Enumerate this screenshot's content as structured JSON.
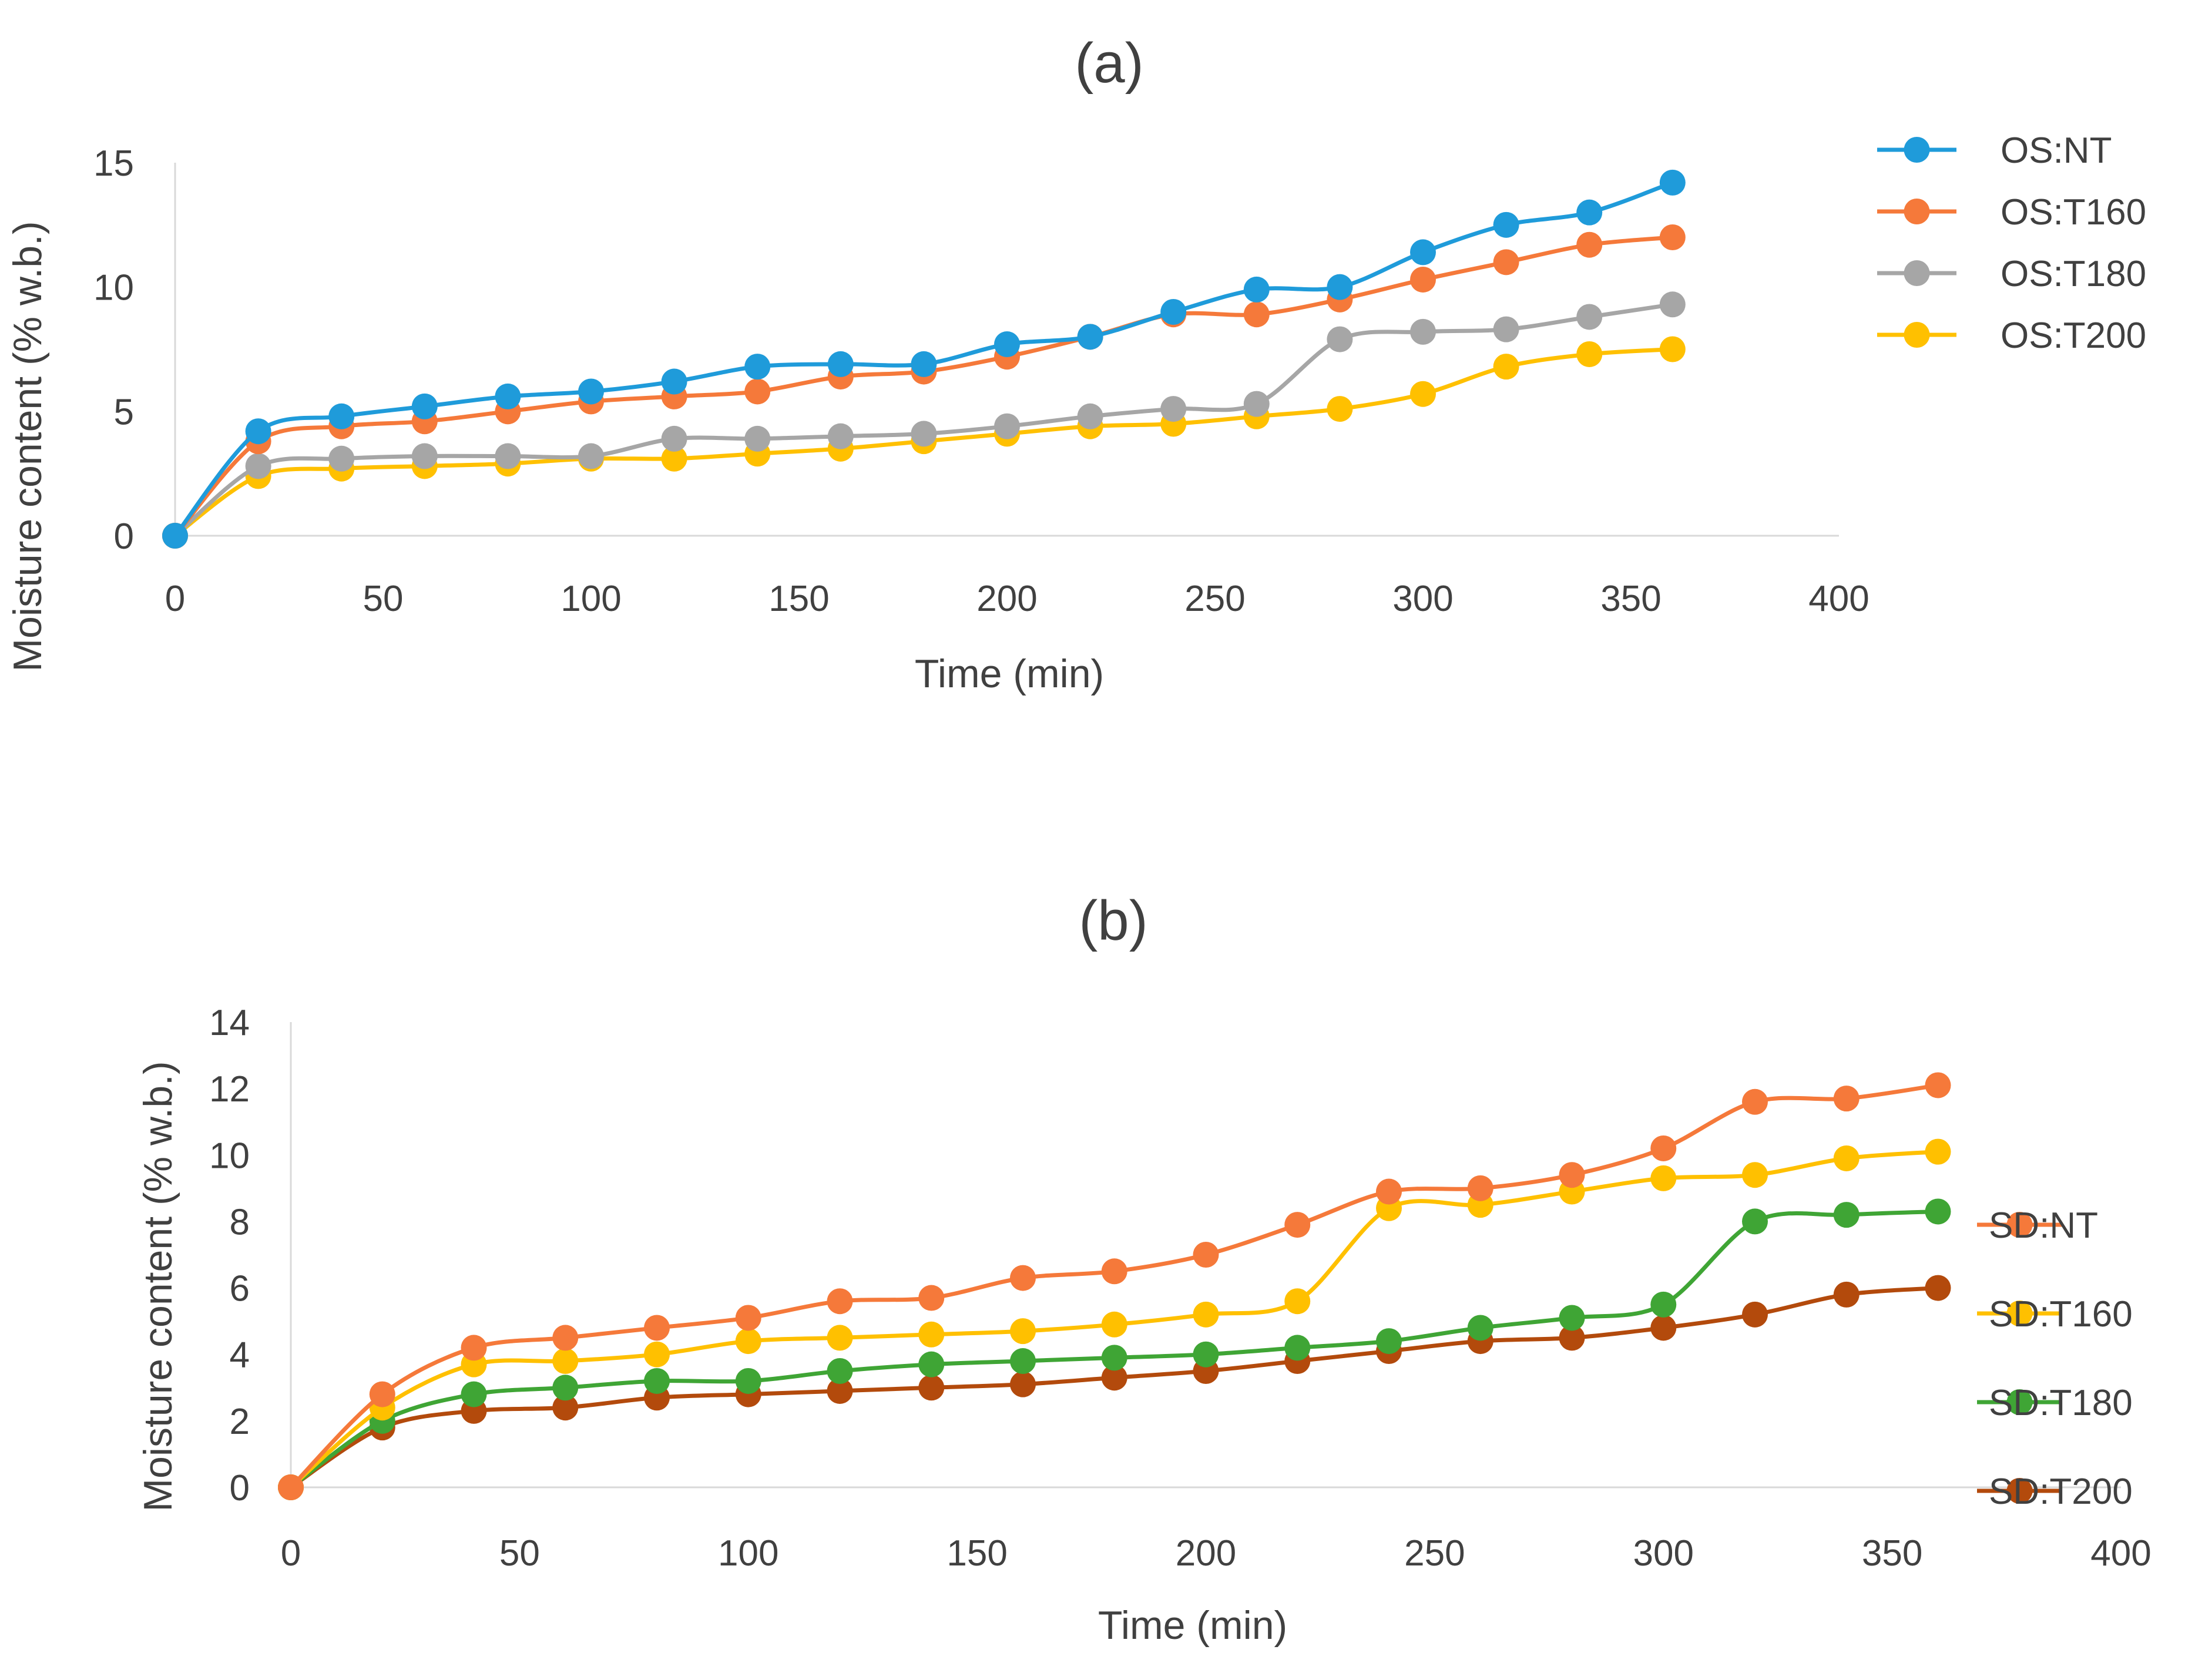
{
  "chart_data": [
    {
      "type": "line",
      "title": "(a)",
      "xlabel": "Time (min)",
      "ylabel": "Moisture content (% w.b.)",
      "xlim": [
        0,
        400
      ],
      "ylim": [
        0,
        15
      ],
      "xticks": [
        0,
        50,
        100,
        150,
        200,
        250,
        300,
        350,
        400
      ],
      "yticks": [
        0,
        5,
        10,
        15
      ],
      "grid": false,
      "legend_position": "right",
      "x": [
        0,
        20,
        40,
        60,
        80,
        100,
        120,
        140,
        160,
        180,
        200,
        220,
        240,
        260,
        280,
        300,
        320,
        340,
        360
      ],
      "series": [
        {
          "name": "OS:NT",
          "color": "#1F9BDA",
          "values": [
            0,
            4.2,
            4.8,
            5.2,
            5.6,
            5.8,
            6.2,
            6.8,
            6.9,
            6.9,
            7.7,
            8.0,
            9.0,
            9.9,
            10.0,
            11.4,
            12.5,
            13.0,
            14.2
          ]
        },
        {
          "name": "OS:T160",
          "color": "#F5793A",
          "values": [
            0,
            3.8,
            4.4,
            4.6,
            5.0,
            5.4,
            5.6,
            5.8,
            6.4,
            6.6,
            7.2,
            8.0,
            8.9,
            8.9,
            9.5,
            10.3,
            11.0,
            11.7,
            12.0
          ]
        },
        {
          "name": "OS:T180",
          "color": "#A6A6A6",
          "values": [
            0,
            2.8,
            3.1,
            3.2,
            3.2,
            3.2,
            3.9,
            3.9,
            4.0,
            4.1,
            4.4,
            4.8,
            5.1,
            5.3,
            7.9,
            8.2,
            8.3,
            8.8,
            9.3
          ]
        },
        {
          "name": "OS:T200",
          "color": "#FFC000",
          "values": [
            0,
            2.4,
            2.7,
            2.8,
            2.9,
            3.1,
            3.1,
            3.3,
            3.5,
            3.8,
            4.1,
            4.4,
            4.5,
            4.8,
            5.1,
            5.7,
            6.8,
            7.3,
            7.5
          ]
        }
      ]
    },
    {
      "type": "line",
      "title": "(b)",
      "xlabel": "Time (min)",
      "ylabel": "Moisture content (% w.b.)",
      "xlim": [
        0,
        400
      ],
      "ylim": [
        0,
        14
      ],
      "xticks": [
        0,
        50,
        100,
        150,
        200,
        250,
        300,
        350,
        400
      ],
      "yticks": [
        0,
        2,
        4,
        6,
        8,
        10,
        12,
        14
      ],
      "grid": false,
      "legend_position": "right",
      "x": [
        0,
        20,
        40,
        60,
        80,
        100,
        120,
        140,
        160,
        180,
        200,
        220,
        240,
        260,
        280,
        300,
        320,
        340,
        360
      ],
      "series": [
        {
          "name": "SD:NT",
          "color": "#F5793A",
          "values": [
            0,
            2.8,
            4.2,
            4.5,
            4.8,
            5.1,
            5.6,
            5.7,
            6.3,
            6.5,
            7.0,
            7.9,
            8.9,
            9.0,
            9.4,
            10.2,
            11.6,
            11.7,
            12.1
          ]
        },
        {
          "name": "SD:T160",
          "color": "#FFC000",
          "values": [
            0,
            2.4,
            3.7,
            3.8,
            4.0,
            4.4,
            4.5,
            4.6,
            4.7,
            4.9,
            5.2,
            5.6,
            8.4,
            8.5,
            8.9,
            9.3,
            9.4,
            9.9,
            10.1
          ]
        },
        {
          "name": "SD:T180",
          "color": "#3FA535",
          "values": [
            0,
            2.0,
            2.8,
            3.0,
            3.2,
            3.2,
            3.5,
            3.7,
            3.8,
            3.9,
            4.0,
            4.2,
            4.4,
            4.8,
            5.1,
            5.5,
            8.0,
            8.2,
            8.3
          ]
        },
        {
          "name": "SD:T200",
          "color": "#B34A0C",
          "values": [
            0,
            1.8,
            2.3,
            2.4,
            2.7,
            2.8,
            2.9,
            3.0,
            3.1,
            3.3,
            3.5,
            3.8,
            4.1,
            4.4,
            4.5,
            4.8,
            5.2,
            5.8,
            6.0
          ]
        }
      ]
    }
  ]
}
